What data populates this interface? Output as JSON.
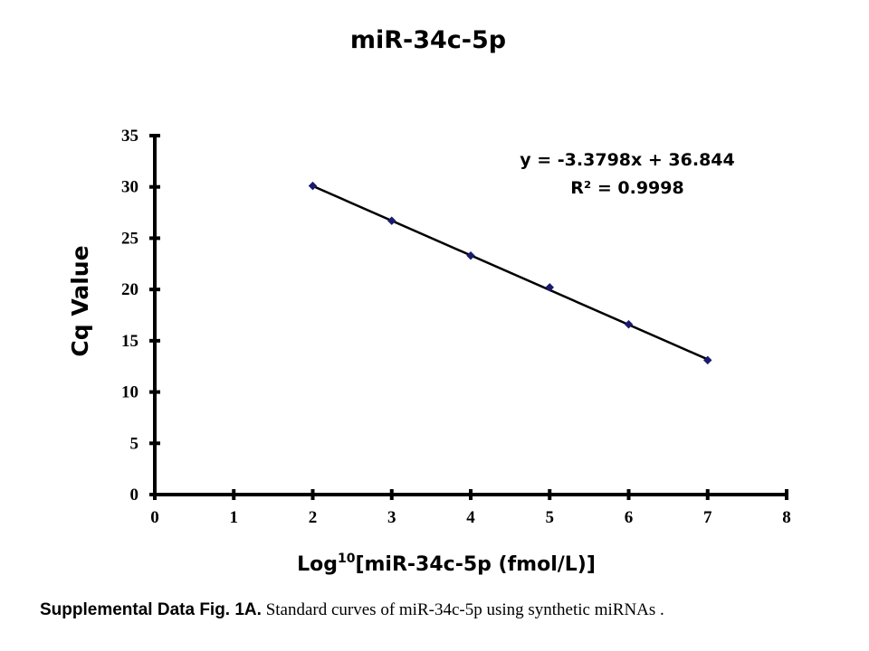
{
  "chart_data": {
    "type": "scatter",
    "title": "miR-34c-5p",
    "ylabel": "Cq Value",
    "xlabel_prefix": "Log",
    "xlabel_superscript": "10",
    "xlabel_suffix": "[miR-34c-5p (fmol/L)]",
    "xlim": [
      0,
      8
    ],
    "ylim": [
      0,
      35
    ],
    "xticks": [
      0,
      1,
      2,
      3,
      4,
      5,
      6,
      7,
      8
    ],
    "yticks": [
      0,
      5,
      10,
      15,
      20,
      25,
      30,
      35
    ],
    "grid": false,
    "series": [
      {
        "x": [
          2,
          3,
          4,
          5,
          6,
          7
        ],
        "y": [
          30.1,
          26.7,
          23.3,
          20.2,
          16.6,
          13.1
        ],
        "marker": "diamond",
        "color": "#1a1a6e"
      }
    ],
    "trendline": {
      "slope": -3.3798,
      "intercept": 36.844,
      "x_range": [
        2,
        7
      ],
      "color": "#000000"
    },
    "annotations": {
      "equation": "y = -3.3798x + 36.844",
      "r_squared": "R² = 0.9998"
    }
  },
  "caption": {
    "lead": "Supplemental Data Fig. 1A.",
    "body": " Standard curves of miR-34c-5p using synthetic miRNAs ."
  }
}
